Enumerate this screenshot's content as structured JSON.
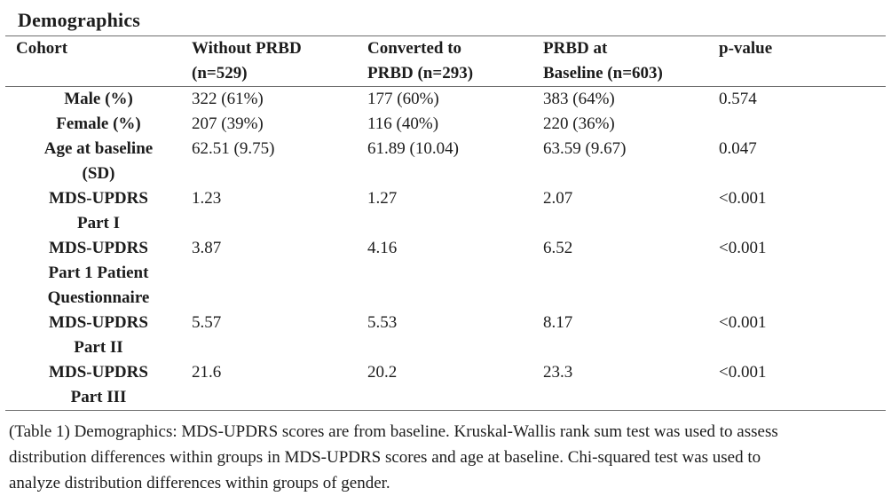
{
  "title": "Demographics",
  "table": {
    "columns": [
      "Cohort",
      "Without PRBD\n(n=529)",
      "Converted to\nPRBD (n=293)",
      "PRBD at\nBaseline (n=603)",
      "p-value"
    ],
    "rows": [
      {
        "label": "Male (%)",
        "values": [
          "322 (61%)",
          "177 (60%)",
          "383 (64%)",
          "0.574"
        ]
      },
      {
        "label": "Female (%)",
        "values": [
          "207 (39%)",
          "116 (40%)",
          "220 (36%)",
          ""
        ]
      },
      {
        "label": "Age at baseline\n(SD)",
        "values": [
          "62.51 (9.75)",
          "61.89 (10.04)",
          "63.59 (9.67)",
          "0.047"
        ]
      },
      {
        "label": "MDS-UPDRS\nPart I",
        "values": [
          "1.23",
          "1.27",
          "2.07",
          "<0.001"
        ]
      },
      {
        "label": "MDS-UPDRS\nPart 1 Patient\nQuestionnaire",
        "values": [
          "3.87",
          "4.16",
          "6.52",
          "<0.001"
        ]
      },
      {
        "label": "MDS-UPDRS\nPart II",
        "values": [
          "5.57",
          "5.53",
          "8.17",
          "<0.001"
        ]
      },
      {
        "label": "MDS-UPDRS\nPart III",
        "values": [
          "21.6",
          "20.2",
          "23.3",
          "<0.001"
        ]
      }
    ]
  },
  "caption": "(Table 1) Demographics: MDS-UPDRS scores are from baseline. Kruskal-Wallis rank sum test was used to assess\ndistribution differences within groups in MDS-UPDRS scores and age at baseline. Chi-squared test was used to\nanalyze distribution differences within groups of gender."
}
